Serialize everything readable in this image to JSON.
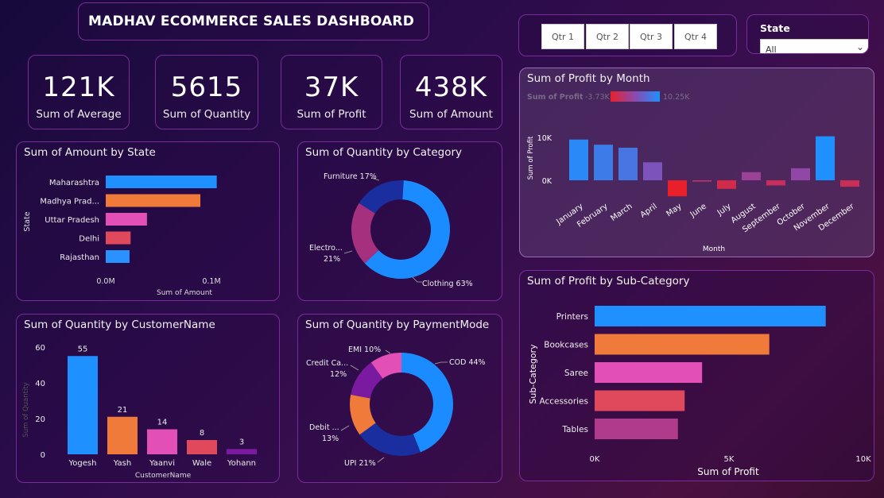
{
  "title": "MADHAV ECOMMERCE SALES DASHBOARD",
  "kpis": [
    {
      "value": "121K",
      "label": "Sum of Average"
    },
    {
      "value": "5615",
      "label": "Sum of Quantity"
    },
    {
      "value": "37K",
      "label": "Sum of Profit"
    },
    {
      "value": "438K",
      "label": "Sum of Amount"
    }
  ],
  "quarters": [
    "Qtr 1",
    "Qtr 2",
    "Qtr 3",
    "Qtr 4"
  ],
  "state_filter": {
    "label": "State",
    "selected": "All"
  },
  "amount_by_state": {
    "title": "Sum of Amount by State",
    "ylabel": "State",
    "xlabel": "Sum of Amount",
    "ticks": [
      "0.0M",
      "0.1M"
    ],
    "categories": [
      "Maharashtra",
      "Madhya Prad...",
      "Uttar Pradesh",
      "Delhi",
      "Rajasthan"
    ],
    "values": [
      0.105,
      0.0895,
      0.039,
      0.0235,
      0.0225
    ],
    "max": 0.1,
    "colors": [
      "#1e90ff",
      "#f07a3a",
      "#e24fb6",
      "#e0485c",
      "#2a92ff"
    ]
  },
  "quantity_by_category": {
    "title": "Sum of Quantity by Category",
    "slices": [
      {
        "name": "Clothing",
        "pct": 63,
        "label": "Clothing 63%",
        "color": "#1a8cff"
      },
      {
        "name": "Electronics",
        "pct": 21,
        "label1": "Electro...",
        "label2": "21%",
        "color": "#a4307e"
      },
      {
        "name": "Furniture",
        "pct": 17,
        "label": "Furniture 17%",
        "color": "#1a2ea0"
      }
    ]
  },
  "profit_by_month": {
    "title": "Sum of Profit by Month",
    "legend_title": "Sum of Profit",
    "legend_min": "-3.73K",
    "legend_max": "10.25K",
    "ylabel": "Sum of Profit",
    "xlabel": "Month",
    "yticks": [
      "10K",
      "0K"
    ],
    "months": [
      "January",
      "February",
      "March",
      "April",
      "May",
      "June",
      "July",
      "August",
      "September",
      "October",
      "November",
      "December"
    ],
    "values": [
      9.5,
      8.3,
      7.6,
      4.2,
      -3.73,
      -0.3,
      -2.0,
      1.9,
      -1.2,
      2.8,
      10.25,
      -1.5
    ]
  },
  "profit_by_subcategory": {
    "title": "Sum of Profit by Sub-Category",
    "ylabel": "Sub-Category",
    "xlabel": "Sum of Profit",
    "ticks": [
      "0K",
      "5K",
      "10K"
    ],
    "categories": [
      "Printers",
      "Bookcases",
      "Saree",
      "Accessories",
      "Tables"
    ],
    "values": [
      8.6,
      6.5,
      4.0,
      3.35,
      3.1
    ],
    "max": 10,
    "colors": [
      "#1e90ff",
      "#f07a3a",
      "#e24fb6",
      "#e0485c",
      "#b03a8c"
    ]
  },
  "quantity_by_customer": {
    "title": "Sum of Quantity by CustomerName",
    "ylabel": "Sum of Quantity",
    "xlabel": "CustomerName",
    "yticks": [
      "60",
      "40",
      "20",
      "0"
    ],
    "categories": [
      "Yogesh",
      "Yash",
      "Yaanvi",
      "Wale",
      "Yohann"
    ],
    "values": [
      55,
      21,
      14,
      8,
      3
    ],
    "value_labels": [
      "55",
      "21",
      "14",
      "8",
      "3"
    ],
    "colors": [
      "#1e90ff",
      "#f07a3a",
      "#e24fb6",
      "#e0485c",
      "#7a1aa0"
    ]
  },
  "quantity_by_paymentmode": {
    "title": "Sum of Quantity by PaymentMode",
    "slices": [
      {
        "name": "COD",
        "pct": 44,
        "label": "COD 44%",
        "color": "#1a8cff"
      },
      {
        "name": "UPI",
        "pct": 21,
        "label": "UPI 21%",
        "color": "#1a2ea0"
      },
      {
        "name": "Debit Card",
        "pct": 13,
        "label1": "Debit ...",
        "label2": "13%",
        "color": "#f07a3a"
      },
      {
        "name": "Credit Card",
        "pct": 12,
        "label1": "Credit Ca...",
        "label2": "12%",
        "color": "#7a1aa0"
      },
      {
        "name": "EMI",
        "pct": 10,
        "label": "EMI 10%",
        "color": "#e24fb6"
      }
    ]
  }
}
